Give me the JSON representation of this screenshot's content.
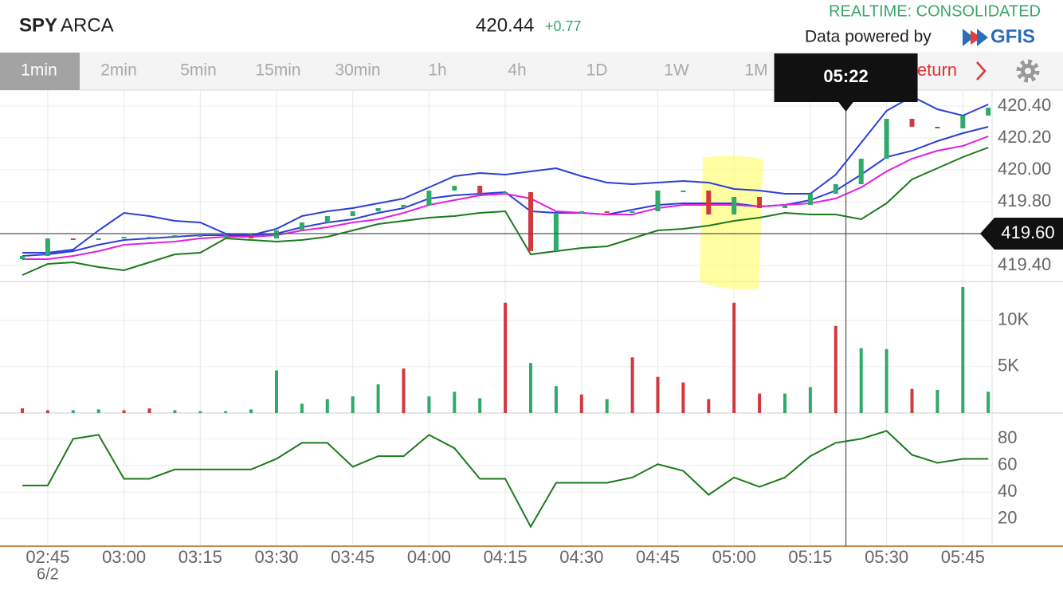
{
  "header": {
    "symbol": "SPY",
    "exchange": "ARCA",
    "price": "420.44",
    "change": "+0.77",
    "feed": "REALTIME: CONSOLIDATED",
    "powered_by": "Data powered by",
    "provider": "GFIS"
  },
  "toolbar": {
    "intervals": [
      "1min",
      "2min",
      "5min",
      "15min",
      "30min",
      "1h",
      "4h",
      "1D",
      "1W",
      "1M"
    ],
    "selected": 0,
    "return": "Return"
  },
  "chart_data": [
    {
      "type": "candlestick",
      "ylim": [
        419.3,
        420.5
      ],
      "yticks": [
        {
          "value": 419.4,
          "label": "419.40"
        },
        {
          "value": 419.6,
          "label": "419.60"
        },
        {
          "value": 419.8,
          "label": "419.80"
        },
        {
          "value": 420.0,
          "label": "420.00"
        },
        {
          "value": 420.2,
          "label": "420.20"
        },
        {
          "value": 420.4,
          "label": "420.40"
        }
      ],
      "grid": true,
      "up_color": "#2eaa6a",
      "down_color": "#d0393e",
      "open": [
        419.44,
        419.46,
        419.57,
        419.56,
        419.57,
        419.58,
        419.58,
        419.59,
        419.59,
        419.59,
        419.57,
        419.62,
        419.67,
        419.71,
        419.74,
        419.76,
        419.78,
        419.87,
        419.9,
        419.85,
        419.86,
        419.49,
        419.73,
        419.74,
        419.73,
        419.74,
        419.87,
        419.87,
        419.72,
        419.83,
        419.76,
        419.78,
        419.85,
        419.91,
        420.07,
        420.32,
        420.27,
        420.26,
        420.34
      ],
      "close": [
        419.46,
        419.57,
        419.56,
        419.57,
        419.58,
        419.58,
        419.59,
        419.59,
        419.59,
        419.57,
        419.62,
        419.67,
        419.71,
        419.74,
        419.76,
        419.78,
        419.87,
        419.9,
        419.85,
        419.86,
        419.49,
        419.73,
        419.74,
        419.73,
        419.74,
        419.87,
        419.87,
        419.72,
        419.83,
        419.76,
        419.78,
        419.85,
        419.91,
        420.07,
        420.32,
        420.27,
        420.26,
        420.34,
        420.39
      ],
      "series": [
        {
          "color": "#2b3fd6",
          "values": [
            419.48,
            419.48,
            419.5,
            419.62,
            419.73,
            419.71,
            419.68,
            419.67,
            419.6,
            419.59,
            419.63,
            419.71,
            419.74,
            419.76,
            419.79,
            419.82,
            419.89,
            419.96,
            419.98,
            419.97,
            419.99,
            420.01,
            419.96,
            419.92,
            419.91,
            419.92,
            419.93,
            419.92,
            419.88,
            419.87,
            419.85,
            419.85,
            419.97,
            420.17,
            420.37,
            420.46,
            420.38,
            420.34,
            420.41
          ]
        },
        {
          "color": "#2b3fd6",
          "values": [
            419.46,
            419.47,
            419.49,
            419.53,
            419.56,
            419.57,
            419.58,
            419.59,
            419.59,
            419.59,
            419.6,
            419.64,
            419.67,
            419.69,
            419.73,
            419.76,
            419.82,
            419.84,
            419.85,
            419.86,
            419.74,
            419.73,
            419.73,
            419.72,
            419.75,
            419.78,
            419.79,
            419.79,
            419.79,
            419.77,
            419.78,
            419.81,
            419.87,
            419.97,
            420.08,
            420.12,
            420.18,
            420.23,
            420.27
          ]
        },
        {
          "color": "#e020e0",
          "values": [
            419.44,
            419.44,
            419.46,
            419.49,
            419.53,
            419.54,
            419.55,
            419.57,
            419.58,
            419.58,
            419.59,
            419.62,
            419.64,
            419.67,
            419.69,
            419.73,
            419.78,
            419.81,
            419.84,
            419.85,
            419.82,
            419.74,
            419.73,
            419.72,
            419.72,
            419.76,
            419.78,
            419.78,
            419.78,
            419.77,
            419.78,
            419.79,
            419.82,
            419.89,
            419.99,
            420.07,
            420.12,
            420.15,
            420.21
          ]
        },
        {
          "color": "#1c7a1c",
          "values": [
            419.34,
            419.41,
            419.42,
            419.39,
            419.37,
            419.42,
            419.47,
            419.48,
            419.57,
            419.56,
            419.55,
            419.56,
            419.58,
            419.62,
            419.66,
            419.68,
            419.7,
            419.71,
            419.73,
            419.74,
            419.47,
            419.49,
            419.51,
            419.52,
            419.57,
            419.62,
            419.63,
            419.65,
            419.68,
            419.7,
            419.73,
            419.72,
            419.72,
            419.69,
            419.79,
            419.94,
            420.01,
            420.08,
            420.14
          ]
        }
      ],
      "crosshair": {
        "x": "05:22",
        "y": {
          "value": 419.6,
          "label": "419.60"
        }
      }
    },
    {
      "type": "bar",
      "ylim": [
        0,
        14200
      ],
      "yticks": [
        {
          "value": 5000,
          "label": "5K"
        },
        {
          "value": 10000,
          "label": "10K"
        }
      ],
      "values": [
        500,
        300,
        300,
        400,
        300,
        500,
        300,
        200,
        200,
        400,
        4600,
        1000,
        1500,
        1800,
        3100,
        4800,
        1800,
        2300,
        1600,
        11900,
        5400,
        2900,
        2000,
        1500,
        6000,
        3900,
        3300,
        1500,
        11900,
        2100,
        2100,
        2800,
        9400,
        7000,
        6900,
        2600,
        2500,
        13600,
        2300
      ],
      "colors": [
        "#d0393e",
        "#d0393e",
        "#2eaa6a",
        "#2eaa6a",
        "#d0393e",
        "#d0393e",
        "#2eaa6a",
        "#2eaa6a",
        "#2eaa6a",
        "#2eaa6a",
        "#2eaa6a",
        "#2eaa6a",
        "#2eaa6a",
        "#2eaa6a",
        "#2eaa6a",
        "#d0393e",
        "#2eaa6a",
        "#2eaa6a",
        "#2eaa6a",
        "#d0393e",
        "#2eaa6a",
        "#2eaa6a",
        "#d0393e",
        "#2eaa6a",
        "#d0393e",
        "#d0393e",
        "#d0393e",
        "#d0393e",
        "#d0393e",
        "#d0393e",
        "#2eaa6a",
        "#2eaa6a",
        "#d0393e",
        "#2eaa6a",
        "#2eaa6a",
        "#d0393e",
        "#2eaa6a",
        "#2eaa6a",
        "#2eaa6a"
      ]
    },
    {
      "type": "line",
      "categories": [
        null,
        "02:45",
        null,
        null,
        "03:00",
        null,
        null,
        "03:15",
        null,
        null,
        "03:30",
        null,
        null,
        "03:45",
        null,
        null,
        "04:00",
        null,
        null,
        "04:15",
        null,
        null,
        "04:30",
        null,
        null,
        "04:45",
        null,
        null,
        "05:00",
        null,
        null,
        "05:15",
        null,
        null,
        "05:30",
        null,
        null,
        "05:45",
        null
      ],
      "date_label": "6/2",
      "ylim": [
        0,
        100
      ],
      "yticks": [
        20,
        40,
        60,
        80
      ],
      "color": "#1c7a1c",
      "values": [
        45,
        45,
        80,
        83,
        50,
        50,
        57,
        57,
        57,
        57,
        65,
        77,
        77,
        59,
        67,
        67,
        83,
        73,
        50,
        50,
        14,
        47,
        47,
        47,
        51,
        61,
        56,
        38,
        51,
        44,
        51,
        67,
        77,
        80,
        86,
        68,
        62,
        65,
        65
      ]
    }
  ]
}
